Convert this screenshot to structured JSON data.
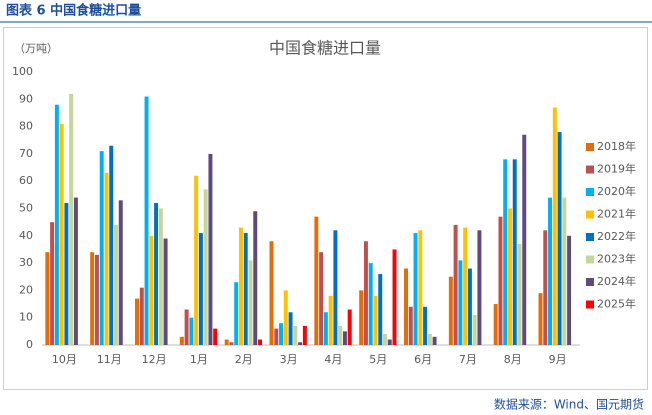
{
  "header": {
    "title": "图表 6  中国食糖进口量"
  },
  "chart_data": {
    "type": "bar",
    "title": "中国食糖进口量",
    "y_label": "（万吨）",
    "categories": [
      "10月",
      "11月",
      "12月",
      "1月",
      "2月",
      "3月",
      "4月",
      "5月",
      "6月",
      "7月",
      "8月",
      "9月"
    ],
    "series": [
      {
        "name": "2018年",
        "color": "#E46C0A",
        "values": [
          34,
          34,
          17,
          3,
          2,
          38,
          47,
          20,
          28,
          25,
          15,
          19
        ]
      },
      {
        "name": "2019年",
        "color": "#C0504D",
        "values": [
          45,
          33,
          21,
          13,
          1,
          6,
          34,
          38,
          14,
          44,
          47,
          42
        ]
      },
      {
        "name": "2020年",
        "color": "#00B0F0",
        "values": [
          88,
          71,
          91,
          10,
          23,
          8,
          12,
          30,
          41,
          31,
          68,
          54
        ]
      },
      {
        "name": "2021年",
        "color": "#FFC000",
        "values": [
          81,
          63,
          40,
          62,
          43,
          20,
          18,
          18,
          42,
          43,
          50,
          87
        ]
      },
      {
        "name": "2022年",
        "color": "#0070C0",
        "values": [
          52,
          73,
          52,
          41,
          41,
          12,
          42,
          26,
          14,
          28,
          68,
          78
        ]
      },
      {
        "name": "2023年",
        "color": "#C3D69B",
        "values": [
          92,
          44,
          50,
          57,
          31,
          7,
          7,
          4,
          4,
          11,
          37,
          54
        ]
      },
      {
        "name": "2024年",
        "color": "#604A7B",
        "values": [
          54,
          53,
          39,
          70,
          49,
          1,
          5,
          2,
          3,
          42,
          77,
          40
        ]
      },
      {
        "name": "2025年",
        "color": "#FF0000",
        "values": [
          null,
          null,
          null,
          6,
          2,
          7,
          13,
          35,
          null,
          null,
          null,
          null
        ]
      }
    ],
    "ylim": [
      0,
      100
    ],
    "yticks": [
      0,
      10,
      20,
      30,
      40,
      50,
      60,
      70,
      80,
      90,
      100
    ],
    "grid": false
  },
  "footer": {
    "source": "数据来源：Wind、国元期货"
  }
}
